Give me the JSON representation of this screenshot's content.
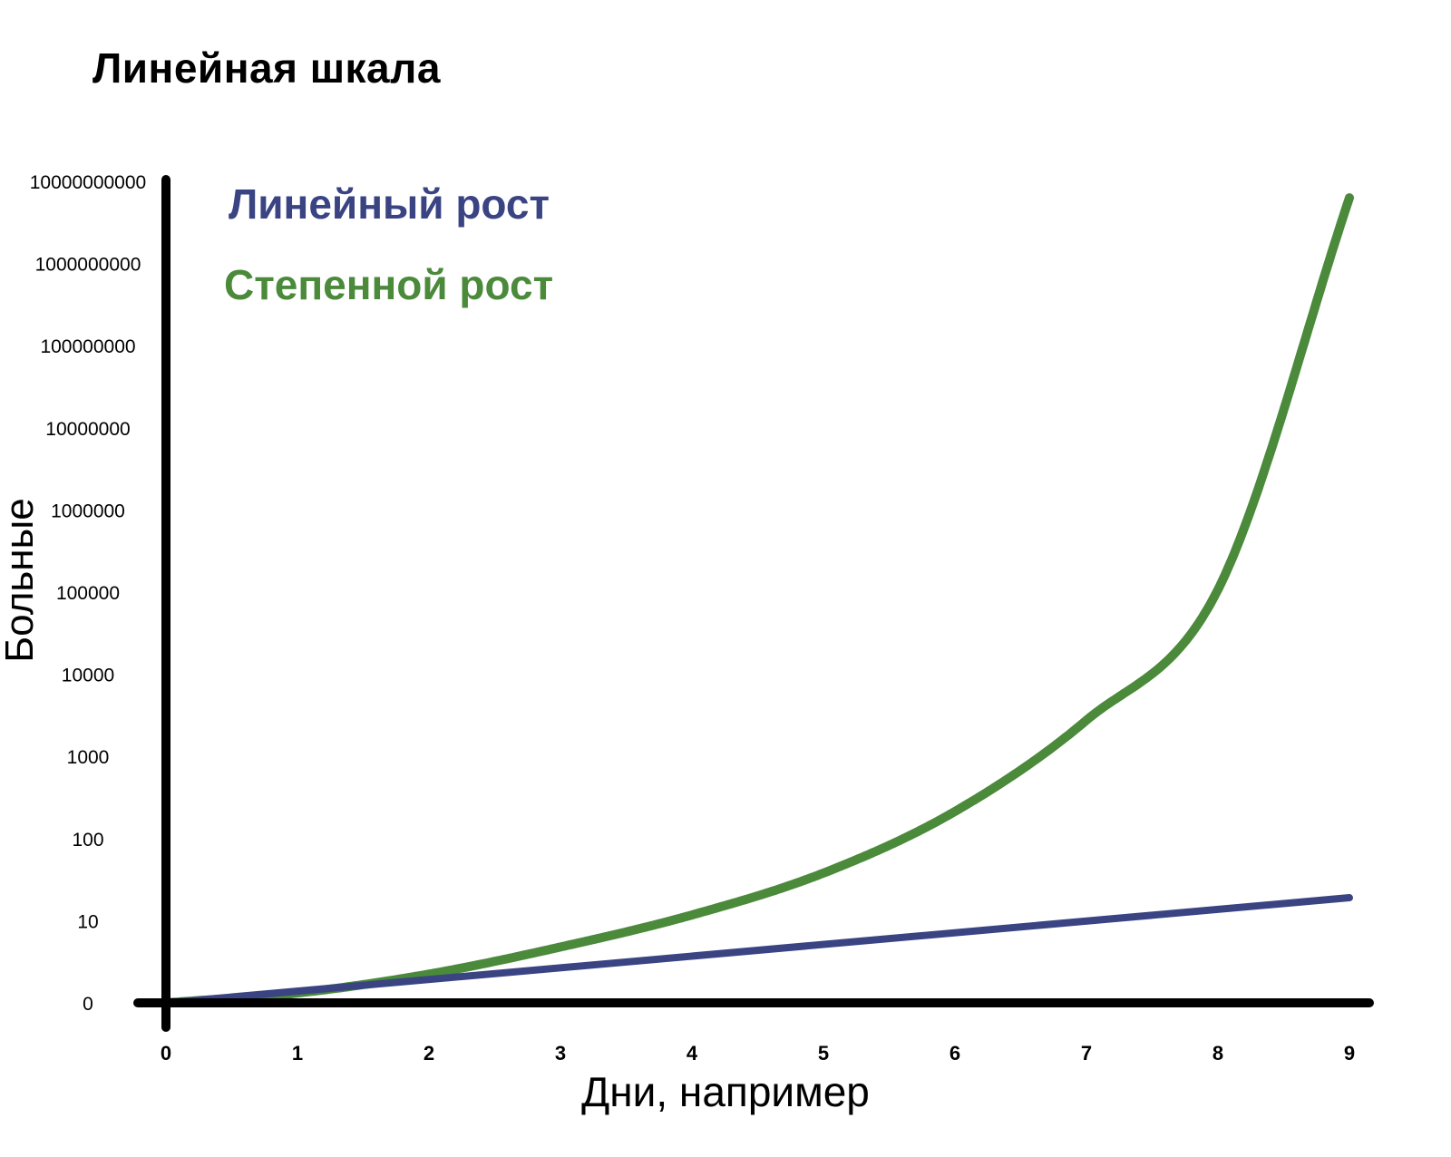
{
  "colors": {
    "linear": "#3a4483",
    "exponential": "#4a8a3a",
    "axis": "#000000"
  },
  "chart_data": {
    "type": "line",
    "title": "Линейная шкала",
    "xlabel": "Дни, например",
    "ylabel": "Больные",
    "x_ticks": [
      "0",
      "1",
      "2",
      "3",
      "4",
      "5",
      "6",
      "7",
      "8",
      "9"
    ],
    "y_ticks": [
      "0",
      "10",
      "100",
      "1000",
      "10000",
      "100000",
      "1000000",
      "10000000",
      "100000000",
      "1000000000",
      "10000000000"
    ],
    "xlim": [
      0,
      9
    ],
    "ylim": [
      0,
      10000000000
    ],
    "y_tick_spacing": "uniform (labels increase tenfold, axis drawn as linear)",
    "grid": false,
    "legend_position": "top-left",
    "series": [
      {
        "name": "Линейный рост",
        "color": "#3a4483",
        "x": [
          0,
          9
        ],
        "y_tick_index": [
          0,
          1.28
        ]
      },
      {
        "name": "Степенной рост",
        "color": "#4a8a3a",
        "x": [
          0,
          1,
          2,
          3,
          4,
          5,
          6,
          7,
          8,
          9
        ],
        "y_tick_index": [
          0,
          0.12,
          0.35,
          0.68,
          1.07,
          1.58,
          2.33,
          3.44,
          5.03,
          9.8
        ]
      }
    ]
  }
}
